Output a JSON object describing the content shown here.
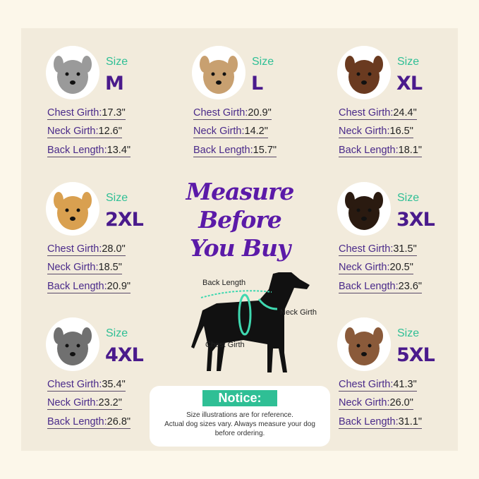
{
  "title_lines": [
    "Measure",
    "Before",
    "You Buy"
  ],
  "size_word": "Size",
  "sizes": [
    {
      "size": "M",
      "chest": "17.3\"",
      "neck": "12.6\"",
      "back": "13.4\""
    },
    {
      "size": "L",
      "chest": "20.9\"",
      "neck": "14.2\"",
      "back": "15.7\""
    },
    {
      "size": "XL",
      "chest": "24.4\"",
      "neck": "16.5\"",
      "back": "18.1\""
    },
    {
      "size": "2XL",
      "chest": "28.0\"",
      "neck": "18.5\"",
      "back": "20.9\""
    },
    {
      "size": "3XL",
      "chest": "31.5\"",
      "neck": "20.5\"",
      "back": "23.6\""
    },
    {
      "size": "4XL",
      "chest": "35.4\"",
      "neck": "23.2\"",
      "back": "26.8\""
    },
    {
      "size": "5XL",
      "chest": "41.3\"",
      "neck": "26.0\"",
      "back": "31.1\""
    }
  ],
  "labels": {
    "chest": "Chest Girth:",
    "neck": "Neck Girth:",
    "back": "Back Length:"
  },
  "diagram": {
    "back": "Back Length",
    "neck": "Neck Girth",
    "chest": "Chest Girth"
  },
  "notice": {
    "title": "Notice:",
    "lines": [
      "Size illustrations are for reference.",
      "Actual dog sizes vary. Always measure your dog",
      "before ordering."
    ]
  },
  "colors": {
    "accent": "#2fbf95",
    "purple": "#4a1a8c",
    "background": "#f2ebdc"
  }
}
